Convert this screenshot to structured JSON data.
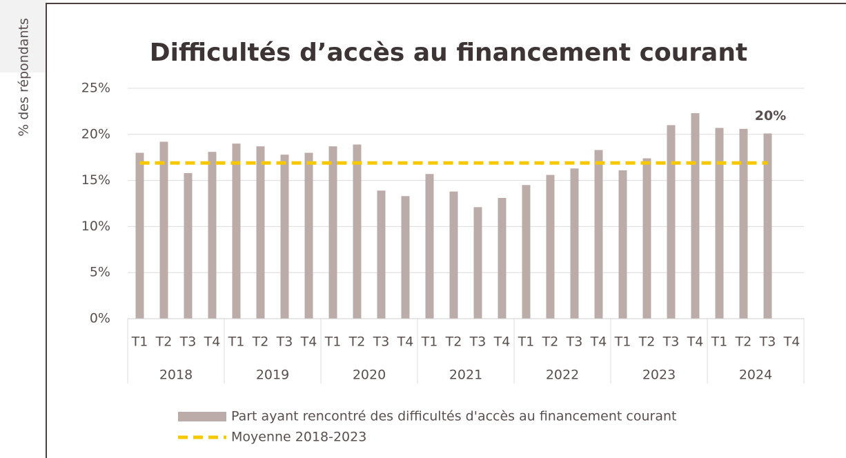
{
  "chart_data": {
    "type": "bar",
    "title": "Difficultés d’accès au financement courant",
    "y_label": "% des répondants",
    "categories": [
      "T1",
      "T2",
      "T3",
      "T4",
      "T1",
      "T2",
      "T3",
      "T4",
      "T1",
      "T2",
      "T3",
      "T4",
      "T1",
      "T2",
      "T3",
      "T4",
      "T1",
      "T2",
      "T3",
      "T4",
      "T1",
      "T2",
      "T3",
      "T4",
      "T1",
      "T2",
      "T3",
      "T4"
    ],
    "years": [
      "2018",
      "2019",
      "2020",
      "2021",
      "2022",
      "2023",
      "2024"
    ],
    "series": [
      {
        "name": "Part ayant rencontré des difficultés d'accès au financement courant",
        "type": "bar",
        "color": "#bcaca9",
        "values": [
          18.0,
          19.2,
          15.8,
          18.1,
          19.0,
          18.7,
          17.8,
          18.0,
          18.7,
          18.9,
          13.9,
          13.3,
          15.7,
          13.8,
          12.1,
          13.1,
          14.5,
          15.6,
          16.3,
          18.3,
          16.1,
          17.4,
          21.0,
          22.3,
          20.7,
          20.6,
          20.1,
          null
        ],
        "value_labels": [
          null,
          null,
          null,
          null,
          null,
          null,
          null,
          null,
          null,
          null,
          null,
          null,
          null,
          null,
          null,
          null,
          null,
          null,
          null,
          null,
          null,
          null,
          null,
          null,
          null,
          null,
          "20%",
          null
        ]
      },
      {
        "name": "Moyenne 2018-2023",
        "type": "line",
        "color": "#f5c800",
        "dashed": true,
        "values": [
          16.9,
          16.9,
          16.9,
          16.9,
          16.9,
          16.9,
          16.9,
          16.9,
          16.9,
          16.9,
          16.9,
          16.9,
          16.9,
          16.9,
          16.9,
          16.9,
          16.9,
          16.9,
          16.9,
          16.9,
          16.9,
          16.9,
          16.9,
          16.9,
          16.9,
          16.9,
          16.9,
          null
        ]
      }
    ],
    "ylim": [
      0,
      25
    ],
    "yticks": [
      {
        "value": 0,
        "label": "0%"
      },
      {
        "value": 5,
        "label": "5%"
      },
      {
        "value": 10,
        "label": "10%"
      },
      {
        "value": 15,
        "label": "15%"
      },
      {
        "value": 20,
        "label": "20%"
      },
      {
        "value": 25,
        "label": "25%"
      }
    ],
    "grid": true
  }
}
